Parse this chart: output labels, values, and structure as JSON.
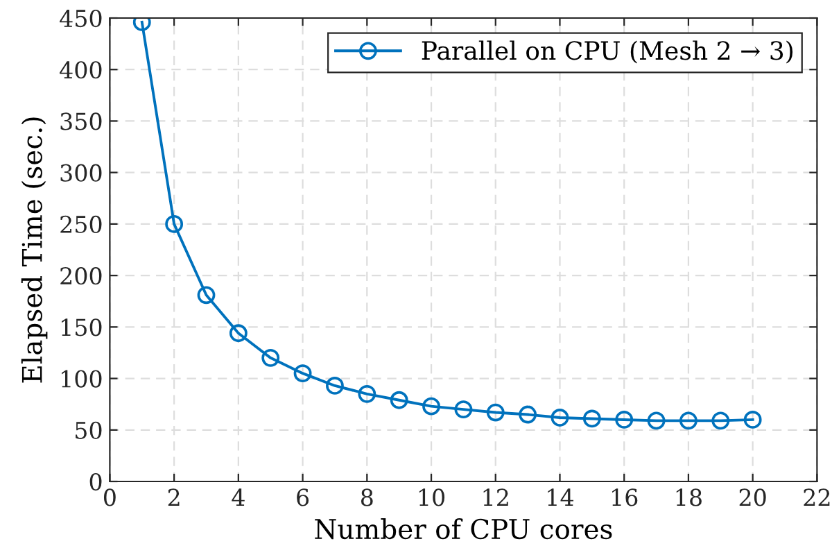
{
  "chart_data": {
    "type": "line",
    "xlabel": "Number of CPU cores",
    "ylabel": "Elapsed Time (sec.)",
    "x": [
      1,
      2,
      3,
      4,
      5,
      6,
      7,
      8,
      9,
      10,
      11,
      12,
      13,
      14,
      15,
      16,
      17,
      18,
      19,
      20
    ],
    "series": [
      {
        "name": "Parallel on CPU (Mesh 2 → 3)",
        "color": "#0072bd",
        "values": [
          446,
          250,
          181,
          144,
          120,
          105,
          93,
          85,
          79,
          73,
          70,
          67,
          65,
          62,
          61,
          60,
          59,
          59,
          59,
          60
        ]
      }
    ],
    "xlim": [
      0,
      22
    ],
    "xticks": [
      0,
      2,
      4,
      6,
      8,
      10,
      12,
      14,
      16,
      18,
      20,
      22
    ],
    "ylim": [
      0,
      450
    ],
    "yticks": [
      0,
      50,
      100,
      150,
      200,
      250,
      300,
      350,
      400,
      450
    ],
    "grid": true,
    "legend": "top right",
    "marker": "circle",
    "line_style": "solid"
  }
}
